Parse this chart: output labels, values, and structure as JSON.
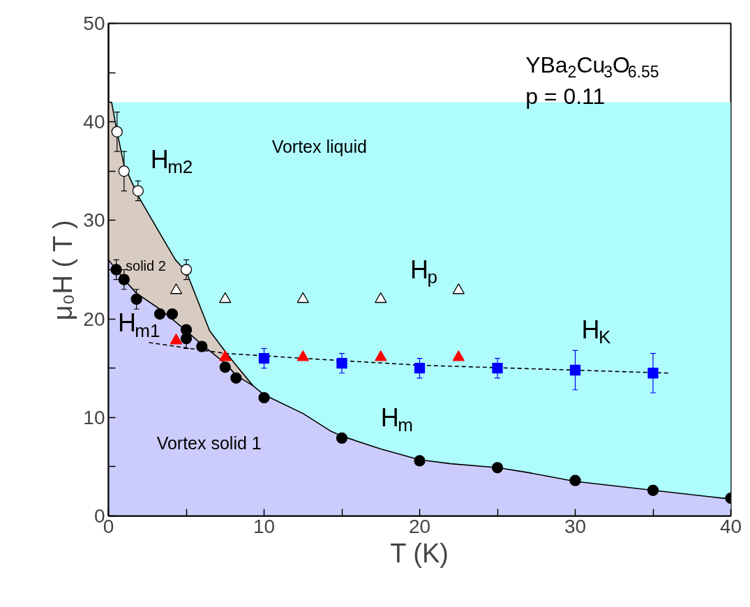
{
  "chart_data": {
    "type": "scatter",
    "xlabel": "T (K)",
    "ylabel": "μ₀H ( T )",
    "xlim": [
      0,
      40
    ],
    "ylim": [
      0,
      50
    ],
    "xticks": [
      0,
      {
        "value": 5,
        "label": null
      },
      10,
      {
        "value": 15,
        "label": null
      },
      20,
      {
        "value": 25,
        "label": null
      },
      30,
      {
        "value": 35,
        "label": null
      },
      40
    ],
    "yticks": [
      0,
      {
        "value": 5,
        "label": null
      },
      10,
      {
        "value": 15,
        "label": null
      },
      20,
      {
        "value": 25,
        "label": null
      },
      30,
      {
        "value": 35,
        "label": null
      },
      40,
      {
        "value": 45,
        "label": null
      },
      50
    ],
    "grid": false,
    "bands": [
      {
        "axis": "y",
        "from": 0,
        "to": 42,
        "color": "#affcfc"
      }
    ],
    "series": [
      {
        "type": "area",
        "color": "#d8ccc2",
        "x": [
          0,
          0.2,
          0.55,
          1,
          1.9,
          3,
          4.3,
          5,
          6.5,
          7.5,
          8.2,
          9.3
        ],
        "values": [
          42,
          42,
          39,
          35.6,
          32.5,
          29.5,
          26,
          24.8,
          18.8,
          16.7,
          15.3,
          13.2
        ]
      },
      {
        "type": "area",
        "color": "#ccccfc",
        "x": [
          0,
          0.5,
          1,
          1.8,
          3.3,
          5,
          6,
          7.5,
          8.2,
          9.3,
          10,
          12.5,
          14.3,
          15,
          17.5,
          20,
          22,
          25,
          27,
          30,
          35,
          39.5,
          40
        ],
        "values": [
          26,
          25,
          24,
          22.6,
          21,
          18.8,
          17.4,
          15.5,
          14.3,
          13.2,
          12.3,
          10.4,
          8.6,
          8.1,
          6.8,
          5.7,
          5.3,
          4.9,
          4.4,
          3.5,
          2.6,
          1.8,
          1.8
        ]
      },
      {
        "type": "line",
        "color": "#000000",
        "line_style": "dashed",
        "x": [
          2.6,
          7.5,
          12.5,
          20,
          30,
          36
        ],
        "values": [
          17.6,
          16.5,
          16,
          15.3,
          14.8,
          14.5
        ]
      },
      {
        "marker": "circle",
        "color": "#000000",
        "x": [
          0.5,
          1,
          1.8,
          3.3,
          4.1,
          5,
          5,
          6,
          7.5,
          8.2,
          10,
          15,
          20,
          25,
          30,
          35,
          40
        ],
        "values": [
          25,
          24,
          22,
          20.5,
          20.5,
          18.9,
          18,
          17.2,
          15.1,
          14,
          12,
          7.9,
          5.6,
          4.9,
          3.6,
          2.6,
          1.8
        ],
        "errors": [
          1,
          1,
          1,
          null,
          null,
          null,
          1,
          null,
          null,
          null,
          null,
          null,
          null,
          null,
          null,
          null,
          null
        ]
      },
      {
        "marker": "circle",
        "color": "#ffffff",
        "x": [
          0.55,
          1,
          1.9,
          5
        ],
        "values": [
          39,
          35,
          33,
          25
        ],
        "errors": [
          2,
          2,
          1,
          1
        ]
      },
      {
        "marker": "triangle",
        "color": "#ffffff",
        "x": [
          4.35,
          7.5,
          12.5,
          17.5,
          22.5
        ],
        "values": [
          22.9,
          22,
          22,
          22,
          22.9
        ]
      },
      {
        "marker": "triangle",
        "color": "#ff0000",
        "x": [
          4.35,
          7.5,
          12.5,
          17.5,
          22.5
        ],
        "values": [
          17.8,
          16.1,
          16.1,
          16.1,
          16.1
        ]
      },
      {
        "marker": "square",
        "color": "#0000ff",
        "x": [
          10,
          15,
          20,
          25,
          30,
          35
        ],
        "values": [
          16,
          15.5,
          15,
          15,
          14.8,
          14.5
        ],
        "errors": [
          1,
          1,
          1,
          1,
          2,
          2
        ]
      }
    ],
    "annotations": [
      "YBa$_{2}$Cu$_{3}$O$_{6.55}$",
      "p = 0.11",
      "Vortex liquid",
      "H$_{m2}$",
      "solid 2",
      "H$_{m1}$",
      "H$_{p}$",
      "H$_{K}$",
      "H$_{m}$",
      "Vortex solid 1"
    ]
  }
}
